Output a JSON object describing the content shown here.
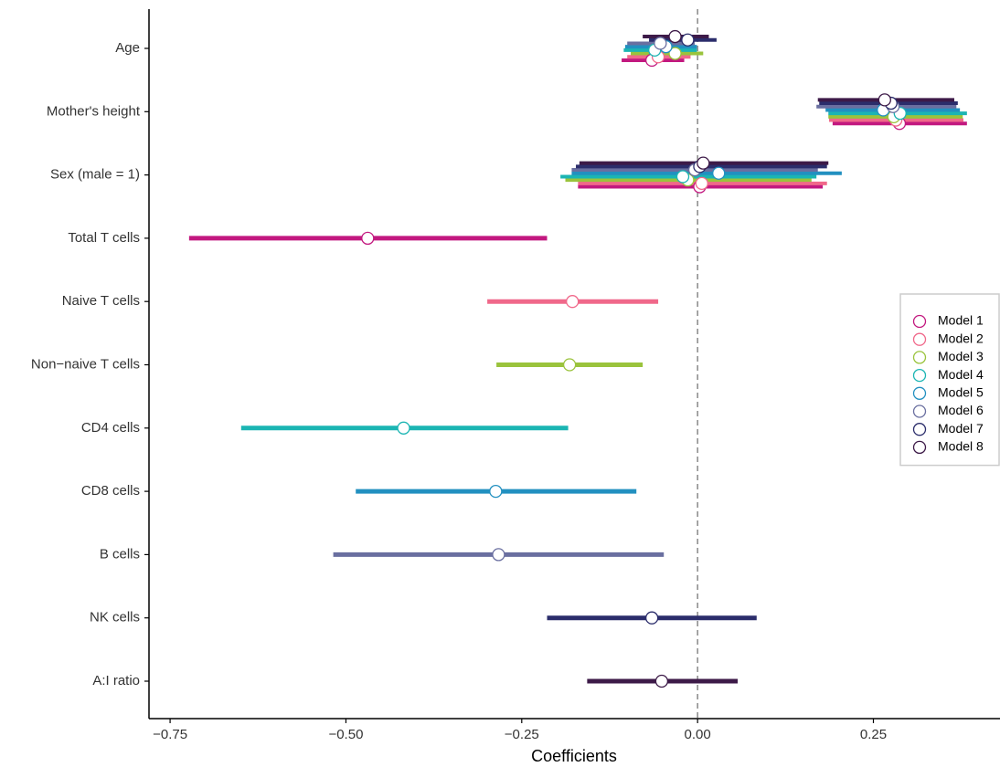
{
  "chart_data": {
    "type": "forest",
    "x_label": "Coefficients",
    "categories": [
      "Age",
      "Mother's height",
      "Sex (male = 1)",
      "Total T cells",
      "Naive T cells",
      "Non−naive T cells",
      "CD4 cells",
      "CD8 cells",
      "B cells",
      "NK cells",
      "A:I ratio"
    ],
    "xlim": [
      -0.78,
      0.43
    ],
    "xticks": [
      {
        "value": -0.75,
        "label": "−0.75"
      },
      {
        "value": -0.5,
        "label": "−0.50"
      },
      {
        "value": -0.25,
        "label": "−0.25"
      },
      {
        "value": 0,
        "label": "0.00"
      },
      0.25
    ],
    "reference_line": 0,
    "legend": "right",
    "series": [
      {
        "name": "Model 1",
        "color": "#c2187f",
        "values": [
          -0.065,
          0.287,
          0.003,
          -0.469,
          null,
          null,
          null,
          null,
          null,
          null,
          null
        ],
        "lower": [
          -0.108,
          0.192,
          -0.17,
          -0.723,
          null,
          null,
          null,
          null,
          null,
          null,
          null
        ],
        "upper": [
          -0.019,
          0.383,
          0.178,
          -0.214,
          null,
          null,
          null,
          null,
          null,
          null,
          null
        ]
      },
      {
        "name": "Model 2",
        "color": "#f0688a",
        "values": [
          -0.056,
          0.282,
          0.006,
          null,
          -0.178,
          null,
          null,
          null,
          null,
          null,
          null
        ],
        "lower": [
          -0.1,
          0.187,
          -0.17,
          null,
          -0.299,
          null,
          null,
          null,
          null,
          null,
          null
        ],
        "upper": [
          -0.01,
          0.378,
          0.184,
          null,
          -0.056,
          null,
          null,
          null,
          null,
          null,
          null
        ]
      },
      {
        "name": "Model 3",
        "color": "#9ac33c",
        "values": [
          -0.032,
          0.279,
          -0.014,
          null,
          null,
          -0.182,
          null,
          null,
          null,
          null,
          null
        ],
        "lower": [
          -0.095,
          0.186,
          -0.188,
          null,
          null,
          -0.286,
          null,
          null,
          null,
          null,
          null
        ],
        "upper": [
          0.008,
          0.377,
          0.162,
          null,
          null,
          -0.078,
          null,
          null,
          null,
          null,
          null
        ]
      },
      {
        "name": "Model 4",
        "color": "#1bb5b3",
        "values": [
          -0.061,
          0.288,
          -0.021,
          null,
          null,
          null,
          -0.418,
          null,
          null,
          null,
          null
        ],
        "lower": [
          -0.105,
          0.186,
          -0.195,
          null,
          null,
          null,
          -0.649,
          null,
          null,
          null,
          null
        ],
        "upper": [
          -0.001,
          0.383,
          0.169,
          null,
          null,
          null,
          -0.184,
          null,
          null,
          null,
          null
        ]
      },
      {
        "name": "Model 5",
        "color": "#2290c0",
        "values": [
          -0.045,
          0.264,
          0.03,
          null,
          null,
          null,
          null,
          -0.287,
          null,
          null,
          null
        ],
        "lower": [
          -0.103,
          0.182,
          -0.179,
          null,
          null,
          null,
          null,
          -0.486,
          null,
          null,
          null
        ],
        "upper": [
          -0.001,
          0.373,
          0.205,
          null,
          null,
          null,
          null,
          -0.087,
          null,
          null,
          null
        ]
      },
      {
        "name": "Model 6",
        "color": "#6a6fa0",
        "values": [
          -0.053,
          0.278,
          -0.004,
          null,
          null,
          null,
          null,
          null,
          -0.283,
          null,
          null
        ],
        "lower": [
          -0.1,
          0.169,
          -0.179,
          null,
          null,
          null,
          null,
          null,
          -0.518,
          null,
          null
        ],
        "upper": [
          -0.004,
          0.368,
          0.171,
          null,
          null,
          null,
          null,
          null,
          -0.048,
          null,
          null
        ]
      },
      {
        "name": "Model 7",
        "color": "#2b2d6b",
        "values": [
          -0.014,
          0.275,
          0.003,
          null,
          null,
          null,
          null,
          null,
          null,
          -0.065,
          null
        ],
        "lower": [
          -0.069,
          0.173,
          -0.173,
          null,
          null,
          null,
          null,
          null,
          null,
          -0.214,
          null
        ],
        "upper": [
          0.027,
          0.37,
          0.184,
          null,
          null,
          null,
          null,
          null,
          null,
          0.084,
          null
        ]
      },
      {
        "name": "Model 8",
        "color": "#3d1a48",
        "values": [
          -0.032,
          0.266,
          0.008,
          null,
          null,
          null,
          null,
          null,
          null,
          null,
          -0.051
        ],
        "lower": [
          -0.078,
          0.171,
          -0.168,
          null,
          null,
          null,
          null,
          null,
          null,
          null,
          -0.157
        ],
        "upper": [
          0.016,
          0.365,
          0.186,
          null,
          null,
          null,
          null,
          null,
          null,
          null,
          0.057
        ]
      }
    ]
  }
}
